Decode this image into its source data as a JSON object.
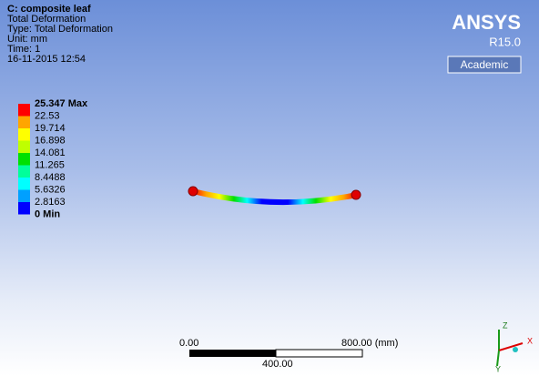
{
  "header": {
    "title": "C: composite leaf",
    "lines": [
      "Total Deformation",
      "Type: Total Deformation",
      "Unit: mm",
      "Time: 1",
      "16-11-2015 12:54"
    ]
  },
  "legend": {
    "labels": [
      "25.347 Max",
      "22.53",
      "19.714",
      "16.898",
      "14.081",
      "11.265",
      "8.4488",
      "5.6326",
      "2.8163",
      "0 Min"
    ],
    "colors": [
      "#ff0000",
      "#ffa500",
      "#ffff00",
      "#bfff00",
      "#00e000",
      "#00ff9a",
      "#00ffff",
      "#00a0ff",
      "#0000ff"
    ]
  },
  "logo": {
    "name": "ANSYS",
    "release": "R15.0",
    "edition": "Academic"
  },
  "scale_bar": {
    "start": "0.00",
    "end": "800.00 (mm)",
    "middle": "400.00"
  },
  "triad": {
    "z": "Z",
    "x": "X",
    "y": "Y"
  }
}
